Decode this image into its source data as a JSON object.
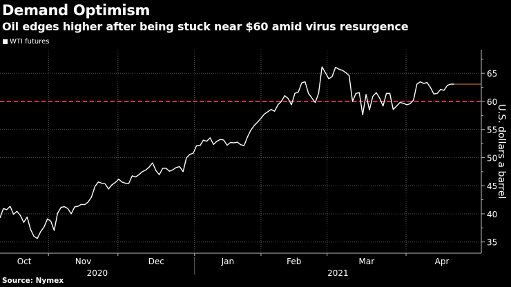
{
  "header": {
    "title": "Demand Optimism",
    "subtitle": "Oil edges higher after being stuck near $60 amid virus resurgence"
  },
  "source": "Source: Nymex",
  "colors": {
    "line": "#ffffff",
    "reference": "#d0304a",
    "last": "#e08a3c",
    "grid": "#555555"
  },
  "chart_data": {
    "type": "line",
    "title": "Demand Optimism",
    "subtitle": "Oil edges higher after being stuck near $60 amid virus resurgence",
    "ylabel": "U.S. dollars a barrel",
    "xlabel": "",
    "ylim": [
      33,
      69.2
    ],
    "yticks": [
      35,
      40,
      45,
      50,
      55,
      60,
      65
    ],
    "grid": true,
    "legend": {
      "entries": [
        "WTI futures"
      ],
      "placement": "top-left"
    },
    "reference_line": {
      "value": 60,
      "style": "dashed"
    },
    "months": [
      {
        "label": "Oct",
        "start": 0,
        "end": 14.3
      },
      {
        "label": "Nov",
        "start": 14.3,
        "end": 34.8
      },
      {
        "label": "Dec",
        "start": 34.8,
        "end": 57.4
      },
      {
        "label": "Jan",
        "start": 57.4,
        "end": 77
      },
      {
        "label": "Feb",
        "start": 77,
        "end": 96.5
      },
      {
        "label": "Mar",
        "start": 96.5,
        "end": 119.8
      },
      {
        "label": "Apr",
        "start": 119.8,
        "end": 142
      }
    ],
    "years": [
      {
        "label": "2020",
        "start": 0,
        "end": 57.4
      },
      {
        "label": "2021",
        "start": 57.4,
        "end": 142
      }
    ],
    "xmax": 142,
    "series": [
      {
        "name": "WTI futures",
        "values": [
          39.3,
          40.94,
          40.74,
          41.35,
          39.92,
          40.45,
          39.71,
          38.48,
          39.43,
          37.25,
          36.02,
          35.61,
          36.84,
          37.66,
          39.1,
          38.69,
          37.05,
          40.12,
          41.15,
          41.27,
          40.94,
          40.0,
          41.23,
          41.35,
          41.68,
          41.64,
          42.09,
          42.99,
          44.84,
          45.66,
          45.45,
          45.33,
          44.43,
          45.16,
          45.57,
          46.15,
          45.66,
          45.45,
          45.41,
          46.76,
          46.56,
          46.97,
          47.5,
          47.79,
          48.32,
          49.06,
          47.7,
          46.97,
          48.11,
          48.11,
          47.58,
          47.83,
          48.24,
          48.4,
          47.5,
          49.96,
          50.57,
          50.78,
          52.13,
          52.13,
          53.11,
          52.91,
          53.52,
          52.34,
          52.91,
          53.24,
          53.11,
          52.21,
          52.7,
          52.62,
          52.75,
          52.3,
          52.13,
          53.65,
          54.88,
          55.7,
          56.31,
          57.01,
          57.75,
          58.16,
          58.57,
          58.24,
          59.39,
          60.0,
          61.02,
          60.53,
          59.39,
          61.43,
          61.64,
          63.28,
          63.48,
          61.43,
          60.61,
          59.8,
          61.43,
          66.15,
          65.12,
          64.02,
          64.43,
          66.07,
          65.74,
          65.53,
          65.12,
          64.59,
          60.0,
          61.43,
          61.56,
          57.62,
          61.23,
          58.48,
          60.9,
          61.56,
          60.61,
          59.18,
          61.43,
          61.43,
          58.57,
          59.18,
          59.8,
          59.67,
          59.39,
          59.59,
          60.2,
          63.07,
          63.48,
          63.2,
          63.36,
          62.46,
          61.31,
          61.43,
          62.13,
          61.97,
          62.87,
          63.07,
          63.07
        ]
      }
    ]
  }
}
